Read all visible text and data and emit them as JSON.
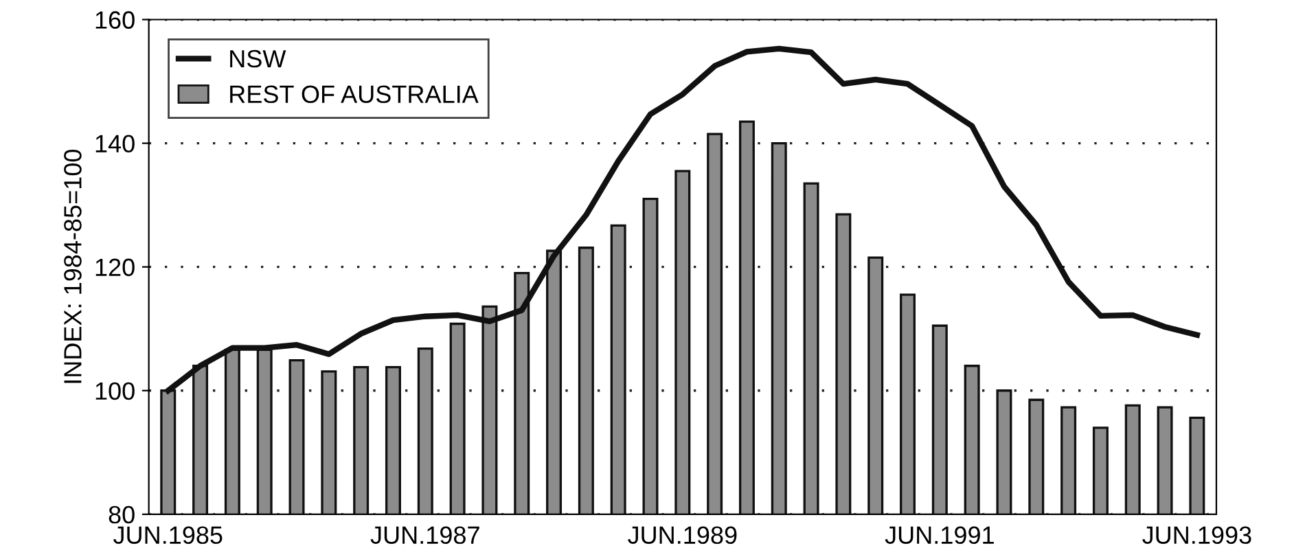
{
  "chart_data": {
    "type": "bar",
    "ylabel": "INDEX: 1984-85=100",
    "categories": [
      "JUN.1985",
      null,
      null,
      null,
      null,
      null,
      null,
      null,
      "JUN.1987",
      null,
      null,
      null,
      null,
      null,
      null,
      null,
      "JUN.1989",
      null,
      null,
      null,
      null,
      null,
      null,
      null,
      "JUN.1991",
      null,
      null,
      null,
      null,
      null,
      null,
      null,
      "JUN.1993"
    ],
    "series": [
      {
        "name": "NSW",
        "type": "line",
        "color": "#111111",
        "values": [
          100,
          104,
          106.9,
          106.9,
          107.4,
          105.9,
          109.2,
          111.4,
          112,
          112.2,
          111.2,
          113,
          121.8,
          128.4,
          137.1,
          144.7,
          147.9,
          152.5,
          154.8,
          155.3,
          154.7,
          149.6,
          150.3,
          149.6,
          146.2,
          142.8,
          133,
          126.8,
          117.6,
          112.1,
          112.2,
          110.3,
          109
        ]
      },
      {
        "name": "REST OF AUSTRALIA",
        "color": "#8c8c8c",
        "values": [
          100,
          104,
          106.6,
          106.6,
          104.9,
          103.1,
          103.8,
          103.8,
          106.8,
          110.8,
          113.6,
          119,
          122.6,
          123.1,
          126.7,
          131,
          135.5,
          141.5,
          143.5,
          140,
          133.5,
          128.5,
          121.5,
          115.5,
          110.5,
          104,
          100,
          98.5,
          97.3,
          94,
          97.6,
          97.3,
          95.6
        ]
      }
    ],
    "ylim": [
      80,
      160
    ],
    "yticks": [
      80,
      100,
      120,
      140,
      160
    ],
    "grid": "y",
    "legend": "top left"
  }
}
